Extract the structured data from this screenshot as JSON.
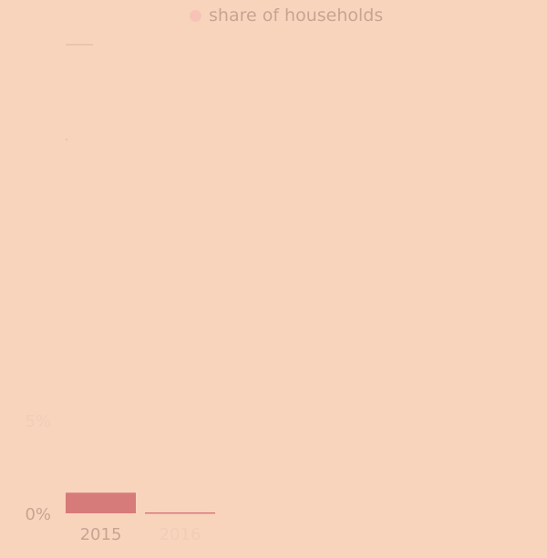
{
  "chart_data": {
    "type": "bar",
    "title": "",
    "xlabel": "",
    "ylabel": "",
    "categories": [
      "2015",
      "2016"
    ],
    "series": [
      {
        "name": "share of households",
        "values": [
          1.1,
          0.05
        ],
        "color": "#d77a7a"
      }
    ],
    "ylim": [
      0,
      25
    ],
    "yticks": [
      "0%",
      "5%"
    ],
    "legend_position": "top-center",
    "grid": false
  },
  "colors": {
    "background": "#f9d4bd",
    "bar": "#d77a7a",
    "muted_text": "#c9a392",
    "legend_swatch": "#f7c3b7"
  }
}
